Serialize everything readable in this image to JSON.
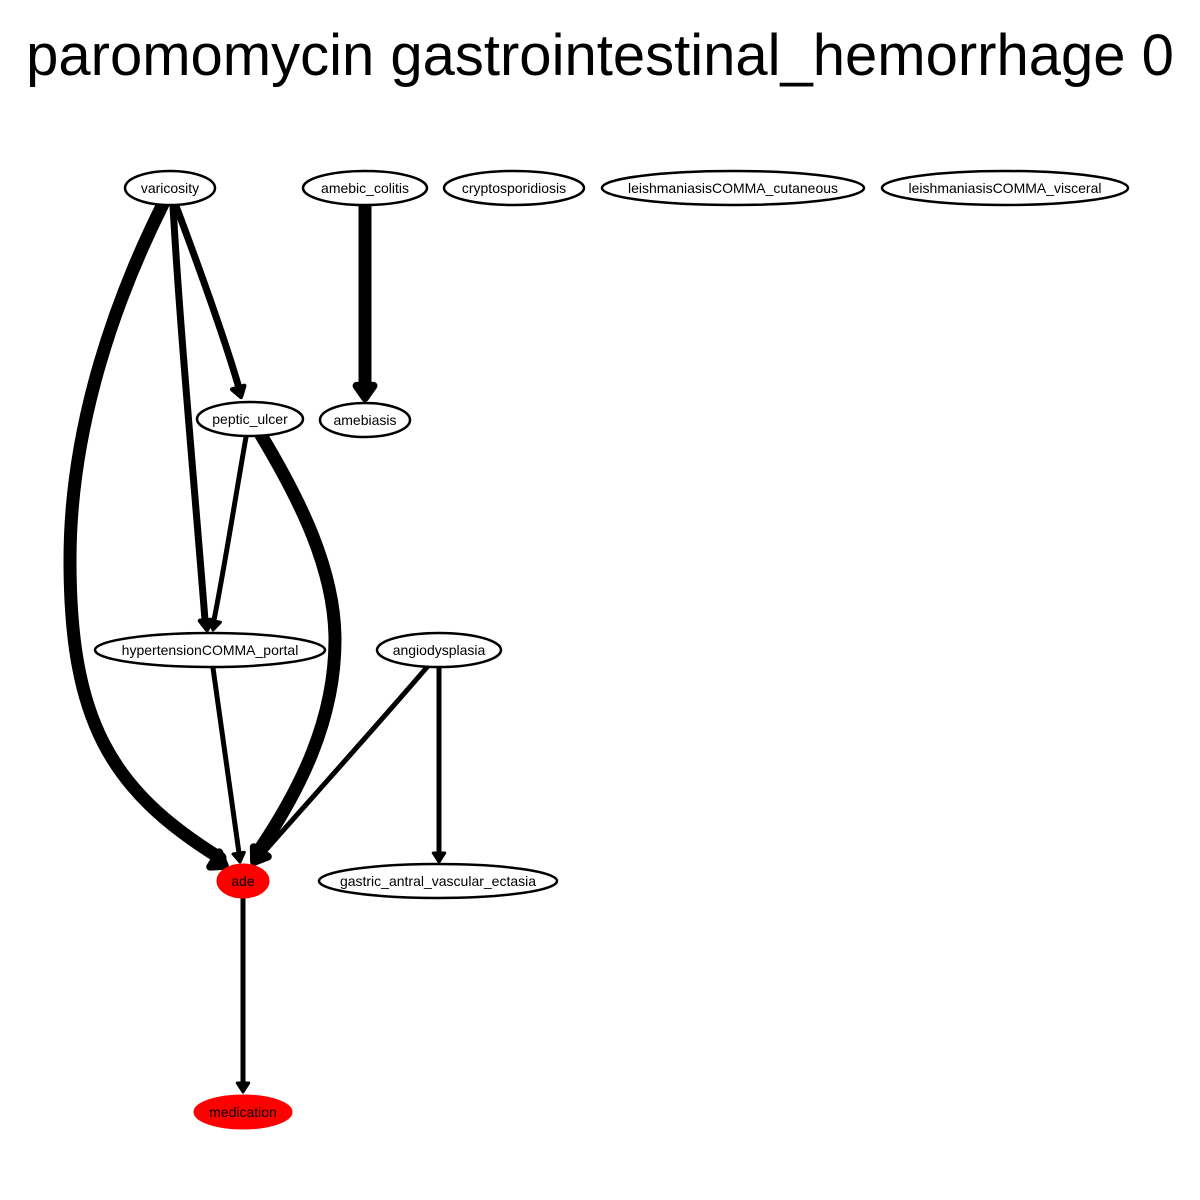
{
  "title": "paromomycin gastrointestinal_hemorrhage 0",
  "colors": {
    "highlight": "#ff0000",
    "stroke": "#000000",
    "background": "#ffffff"
  },
  "nodes": [
    {
      "id": "varicosity",
      "label": "varicosity"
    },
    {
      "id": "amebic_colitis",
      "label": "amebic_colitis"
    },
    {
      "id": "cryptosporidiosis",
      "label": "cryptosporidiosis"
    },
    {
      "id": "leish_cut",
      "label": "leishmaniasisCOMMA_cutaneous"
    },
    {
      "id": "leish_vis",
      "label": "leishmaniasisCOMMA_visceral"
    },
    {
      "id": "peptic_ulcer",
      "label": "peptic_ulcer"
    },
    {
      "id": "amebiasis",
      "label": "amebiasis"
    },
    {
      "id": "hypertension",
      "label": "hypertensionCOMMA_portal"
    },
    {
      "id": "angiodysplasia",
      "label": "angiodysplasia"
    },
    {
      "id": "ade",
      "label": "ade",
      "highlight": true
    },
    {
      "id": "gave",
      "label": "gastric_antral_vascular_ectasia"
    },
    {
      "id": "medication",
      "label": "medication",
      "highlight": true
    }
  ],
  "edges": [
    {
      "from": "varicosity",
      "to": "ade",
      "weight": "heavy"
    },
    {
      "from": "varicosity",
      "to": "hypertension",
      "weight": "medium"
    },
    {
      "from": "varicosity",
      "to": "peptic_ulcer",
      "weight": "medium"
    },
    {
      "from": "amebic_colitis",
      "to": "amebiasis",
      "weight": "heavy"
    },
    {
      "from": "peptic_ulcer",
      "to": "hypertension",
      "weight": "light"
    },
    {
      "from": "peptic_ulcer",
      "to": "ade",
      "weight": "heavy"
    },
    {
      "from": "hypertension",
      "to": "ade",
      "weight": "light"
    },
    {
      "from": "angiodysplasia",
      "to": "ade",
      "weight": "light"
    },
    {
      "from": "angiodysplasia",
      "to": "gave",
      "weight": "light"
    },
    {
      "from": "ade",
      "to": "medication",
      "weight": "light"
    }
  ]
}
